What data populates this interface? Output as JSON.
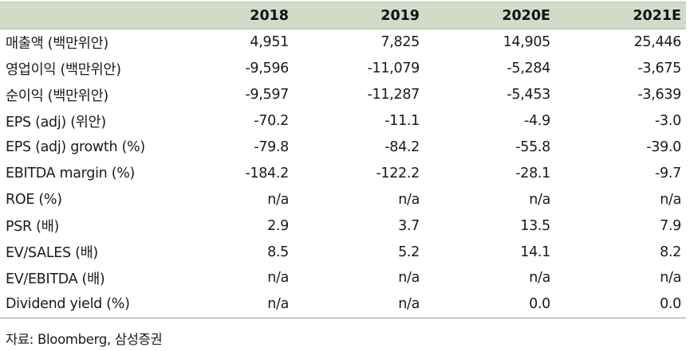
{
  "table": {
    "headers": [
      "",
      "2018",
      "2019",
      "2020E",
      "2021E"
    ],
    "rows": [
      {
        "label": "매출액 (백만위안)",
        "values": [
          "4,951",
          "7,825",
          "14,905",
          "25,446"
        ]
      },
      {
        "label": "영업이익 (백만위안)",
        "values": [
          "-9,596",
          "-11,079",
          "-5,284",
          "-3,675"
        ]
      },
      {
        "label": "순이익 (백만위안)",
        "values": [
          "-9,597",
          "-11,287",
          "-5,453",
          "-3,639"
        ]
      },
      {
        "label": "EPS (adj) (위안)",
        "values": [
          "-70.2",
          "-11.1",
          "-4.9",
          "-3.0"
        ]
      },
      {
        "label": "EPS (adj) growth (%)",
        "values": [
          "-79.8",
          "-84.2",
          "-55.8",
          "-39.0"
        ]
      },
      {
        "label": "EBITDA margin (%)",
        "values": [
          "-184.2",
          "-122.2",
          "-28.1",
          "-9.7"
        ]
      },
      {
        "label": "ROE (%)",
        "values": [
          "n/a",
          "n/a",
          "n/a",
          "n/a"
        ]
      },
      {
        "label": "PSR (배)",
        "values": [
          "2.9",
          "3.7",
          "13.5",
          "7.9"
        ]
      },
      {
        "label": "EV/SALES (배)",
        "values": [
          "8.5",
          "5.2",
          "14.1",
          "8.2"
        ]
      },
      {
        "label": "EV/EBITDA (배)",
        "values": [
          "n/a",
          "n/a",
          "n/a",
          "n/a"
        ]
      },
      {
        "label": "Dividend yield (%)",
        "values": [
          "n/a",
          "n/a",
          "0.0",
          "0.0"
        ]
      }
    ]
  },
  "source": "자료: Bloomberg, 삼성증권",
  "colors": {
    "header_bg": "#d3dbc8",
    "text": "#1a1a1a"
  }
}
